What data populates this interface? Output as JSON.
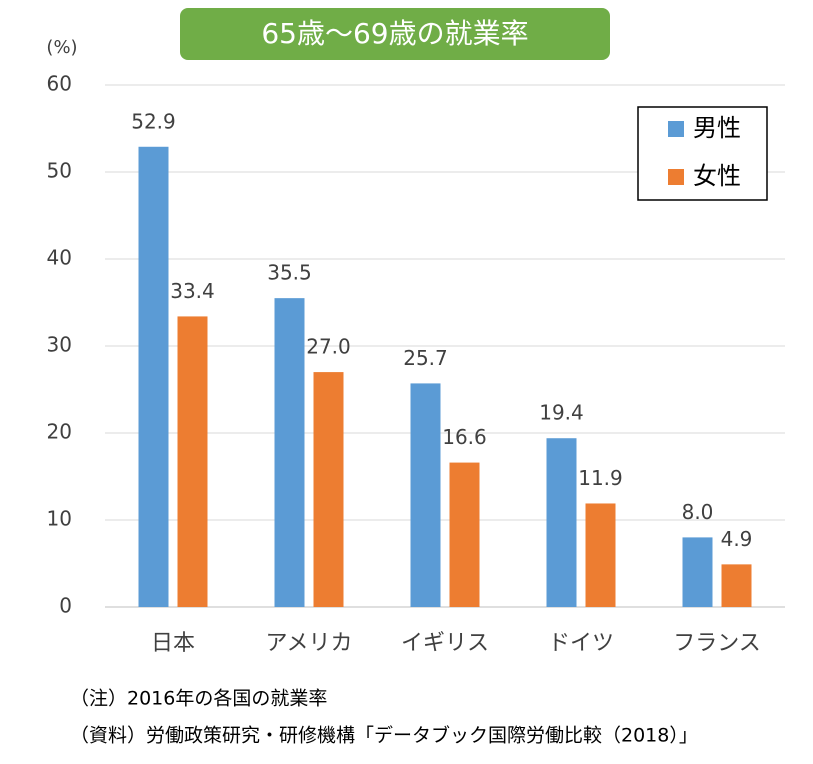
{
  "chart_data": {
    "type": "bar",
    "title": "65歳～69歳の就業率",
    "y_label": "(%)",
    "categories": [
      "日本",
      "アメリカ",
      "イギリス",
      "ドイツ",
      "フランス"
    ],
    "series": [
      {
        "name": "男性",
        "color": "#5b9bd5",
        "values": [
          52.9,
          35.5,
          25.7,
          19.4,
          8.0
        ],
        "value_labels": [
          "52.9",
          "35.5",
          "25.7",
          "19.4",
          "8.0"
        ]
      },
      {
        "name": "女性",
        "color": "#ed7d31",
        "values": [
          33.4,
          27.0,
          16.6,
          11.9,
          4.9
        ],
        "value_labels": [
          "33.4",
          "27.0",
          "16.6",
          "11.9",
          "4.9"
        ]
      }
    ],
    "ylim": [
      0,
      60
    ],
    "yticks": [
      0,
      10,
      20,
      30,
      40,
      50,
      60
    ],
    "grid": true,
    "legend": "top-right",
    "notes": [
      "（注）2016年の各国の就業率",
      "（資料）労働政策研究・研修機構「データブック国際労働比較（2018）」"
    ]
  }
}
